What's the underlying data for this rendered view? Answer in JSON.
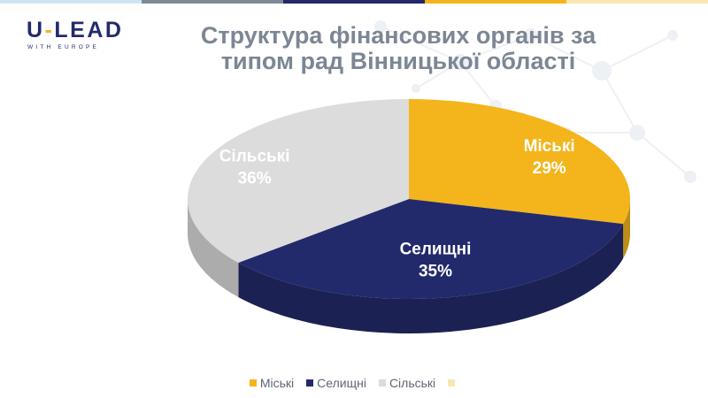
{
  "colors": {
    "navy": "#232a6b",
    "gold": "#f3b51b",
    "grey": "#dcdcdc",
    "title": "#7c8694",
    "top_bar": [
      "#cfe3f4",
      "#7f8a98",
      "#232a6b",
      "#f3b51b",
      "#f9e7b2"
    ]
  },
  "logo": {
    "main_left": "U",
    "main_dash": "-",
    "main_right": "LEAD",
    "sub": "WITH EUROPE"
  },
  "decor": {
    "icon": "molecule-network-icon"
  },
  "title_lines": [
    "Структура фінансових органів за",
    "типом рад Вінницької області"
  ],
  "chart_data": {
    "type": "pie",
    "style": "3d-pie",
    "title": "Структура фінансових органів за типом рад Вінницької області",
    "categories": [
      "Міські",
      "Селищні",
      "Сільські"
    ],
    "values": [
      29,
      35,
      36
    ],
    "unit": "%",
    "colors": [
      "#f3b51b",
      "#232a6b",
      "#dcdcdc"
    ],
    "label_colors": [
      "#ffffff",
      "#ffffff",
      "#ffffff"
    ],
    "data_labels": [
      "29%",
      "35%",
      "36%"
    ],
    "legend_position": "bottom",
    "legend": [
      "Міські",
      "Селищні",
      "Сільські",
      ""
    ],
    "legend_colors": [
      "#f3b51b",
      "#232a6b",
      "#dcdcdc",
      "#f9e7b2"
    ]
  }
}
